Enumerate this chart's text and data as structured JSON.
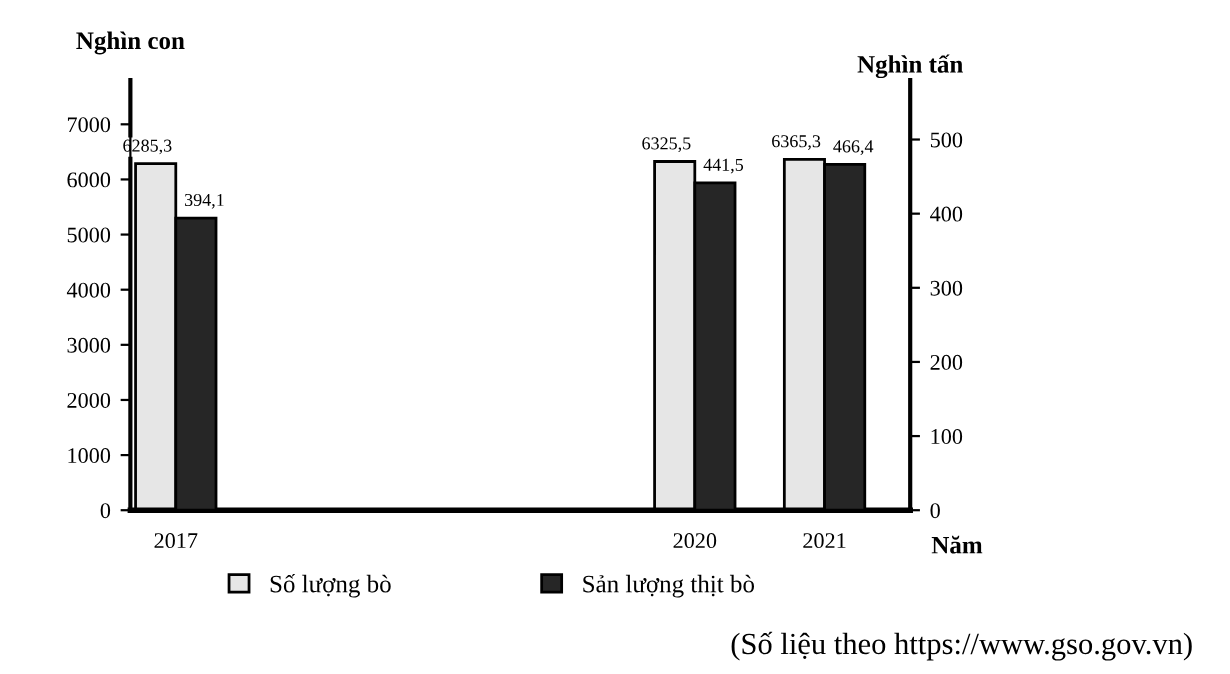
{
  "chart_data": {
    "type": "bar",
    "categories": [
      "2017",
      null,
      null,
      null,
      "2020",
      "2021"
    ],
    "series": [
      {
        "name": "Số lượng bò",
        "color": "#e6e6e6",
        "values": [
          6285.3,
          null,
          null,
          null,
          6325.5,
          6365.3
        ],
        "value_labels": [
          "6285,3",
          null,
          null,
          null,
          "6325,5",
          "6365,3"
        ]
      },
      {
        "name": "Sản lượng thịt bò",
        "color": "#262626",
        "axis": "y2",
        "values": [
          394.1,
          null,
          null,
          null,
          441.5,
          466.4
        ],
        "value_labels": [
          "394,1",
          null,
          null,
          null,
          "441,5",
          "466,4"
        ]
      }
    ],
    "xlabel": "Năm",
    "ylabel": "Nghìn con",
    "y2label": "Nghìn tấn",
    "ylim": [
      0,
      7800
    ],
    "yticks": [
      0,
      1000,
      2000,
      3000,
      4000,
      5000,
      6000,
      7000
    ],
    "y2lim": [
      0,
      580
    ],
    "y2ticks": [
      0,
      100,
      200,
      300,
      400,
      500
    ],
    "grid": false,
    "legend": "bottom",
    "annotations": [
      "(Số liệu theo https://www.gso.gov.vn)"
    ]
  }
}
